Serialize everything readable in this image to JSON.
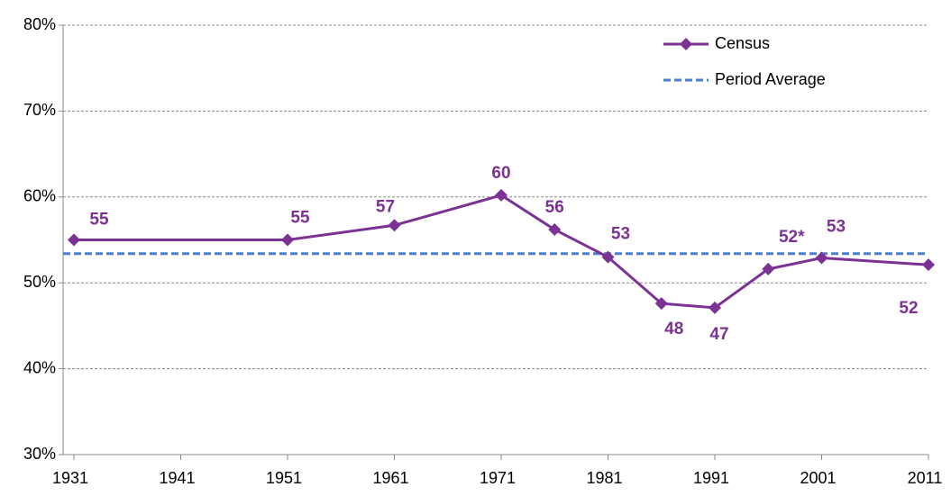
{
  "chart_data": {
    "type": "line",
    "x": [
      1931,
      1951,
      1961,
      1971,
      1976,
      1981,
      1986,
      1991,
      1996,
      2001,
      2011
    ],
    "series": [
      {
        "name": "Census",
        "color": "#7b3294",
        "values": [
          55,
          55,
          56.7,
          60.2,
          56.2,
          53,
          47.6,
          47.1,
          51.6,
          52.9,
          52.1
        ],
        "value_labels": [
          "55",
          "55",
          "57",
          "60",
          "56",
          "53",
          "48",
          "47",
          "52*",
          "53",
          "52"
        ]
      }
    ],
    "average_line": {
      "name": "Period Average",
      "value": 53.4,
      "color": "#4a7fd0"
    },
    "xlim": [
      1931,
      2011
    ],
    "xticks": [
      1931,
      1941,
      1951,
      1961,
      1971,
      1981,
      1991,
      2001,
      2011
    ],
    "ylim": [
      30,
      80
    ],
    "yticks": [
      {
        "value": 30,
        "label": "30%"
      },
      {
        "value": 40,
        "label": "40%"
      },
      {
        "value": 50,
        "label": "50%"
      },
      {
        "value": 60,
        "label": "60%"
      },
      {
        "value": 70,
        "label": "70%"
      },
      {
        "value": 80,
        "label": "80%"
      }
    ],
    "grid": true,
    "legend": "top-right"
  }
}
